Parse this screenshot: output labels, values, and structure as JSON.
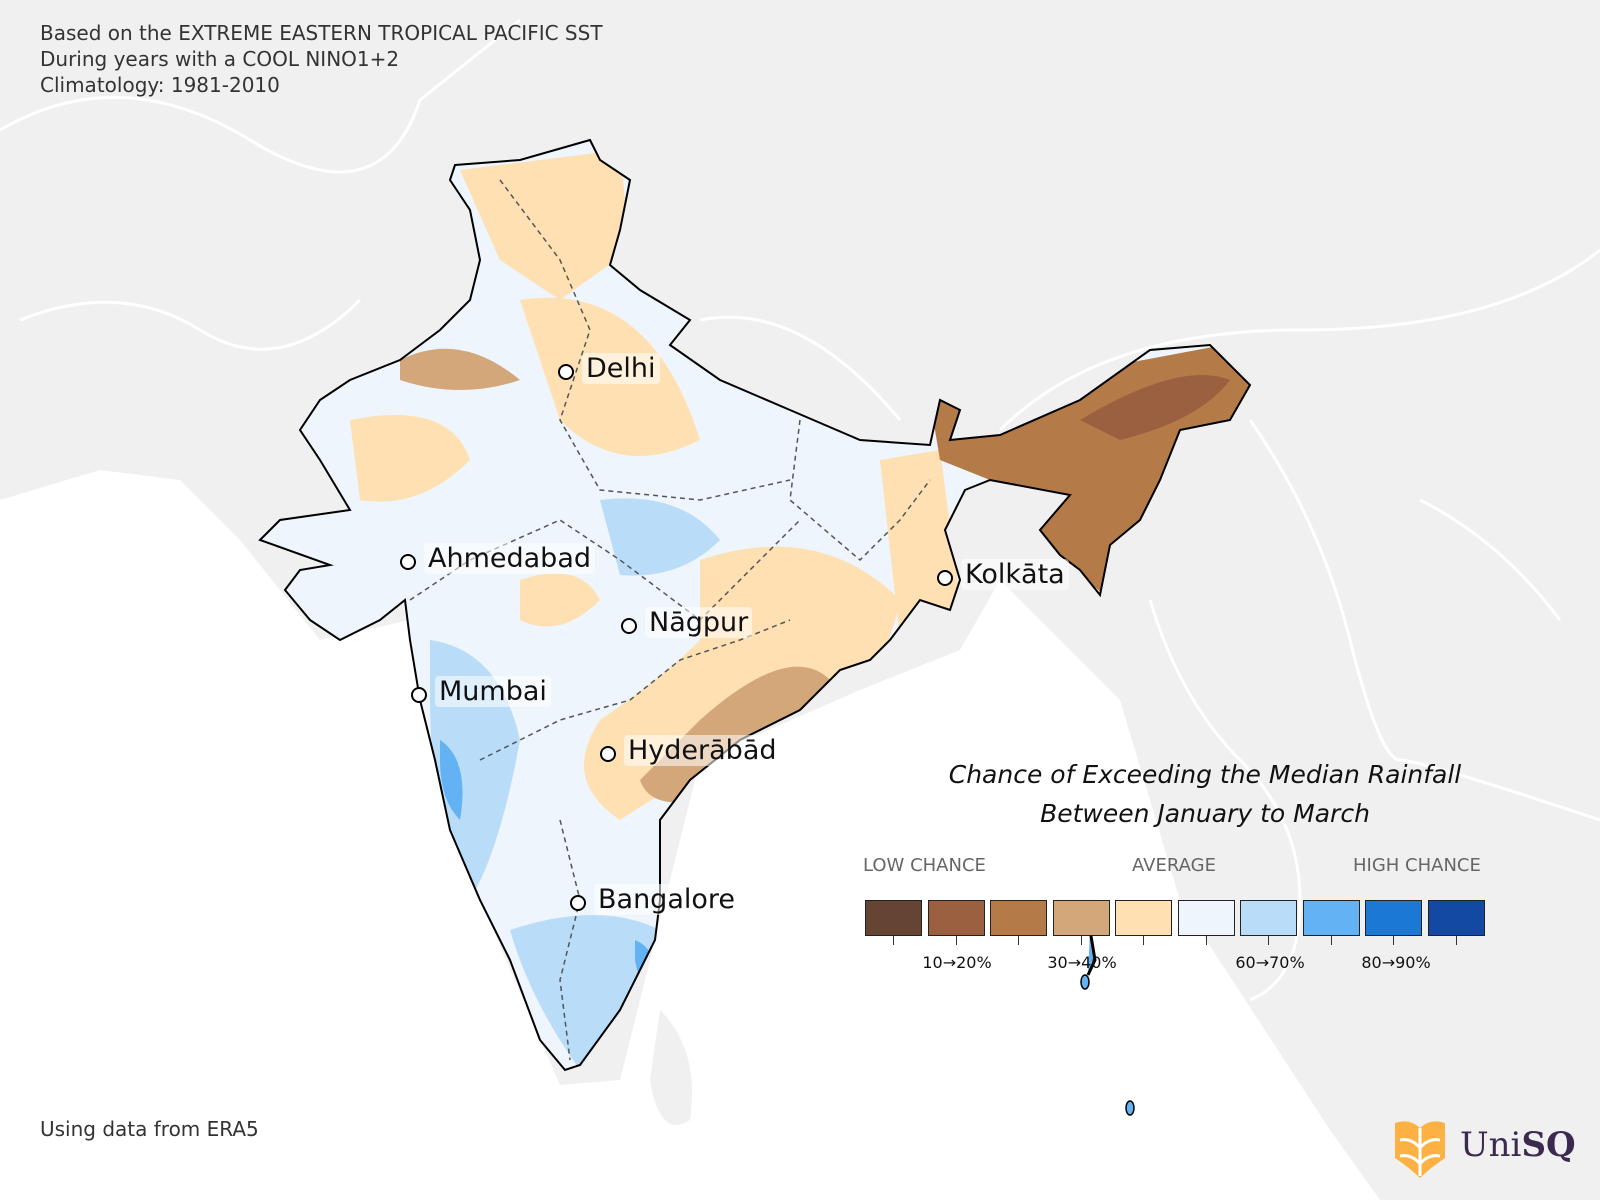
{
  "header": {
    "line1": "Based on the EXTREME EASTERN TROPICAL PACIFIC SST",
    "line2": "During years with a COOL NINO1+2",
    "line3": "Climatology: 1981-2010"
  },
  "source": "Using data from ERA5",
  "title": {
    "line1": "Chance of Exceeding the Median Rainfall",
    "line2": "Between January to March"
  },
  "cities": [
    {
      "name": "Delhi"
    },
    {
      "name": "Ahmedabad"
    },
    {
      "name": "Kolkāta"
    },
    {
      "name": "Nāgpur"
    },
    {
      "name": "Mumbai"
    },
    {
      "name": "Hyderābād"
    },
    {
      "name": "Bangalore"
    }
  ],
  "legend": {
    "low": "LOW CHANCE",
    "average": "AVERAGE",
    "high": "HIGH CHANCE",
    "colors": [
      "#654433",
      "#9a6040",
      "#b47b48",
      "#d4a77b",
      "#fee0b2",
      "#eef5fc",
      "#b9dcf8",
      "#62b2f4",
      "#1b78d4",
      "#1348a3"
    ],
    "tick_labels": [
      "10→20%",
      "30→40%",
      "60→70%",
      "80→90%"
    ]
  },
  "logo": {
    "text_a": "Uni",
    "text_b": "SQ"
  }
}
